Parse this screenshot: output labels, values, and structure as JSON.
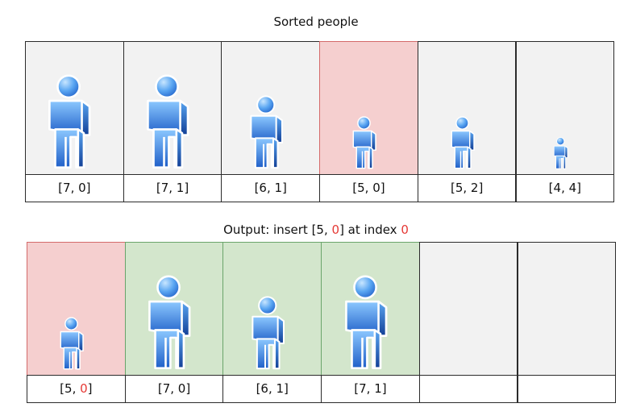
{
  "top": {
    "title": "Sorted people",
    "people": [
      {
        "label": "[7, 0]",
        "height": 7,
        "state": "normal"
      },
      {
        "label": "[7, 1]",
        "height": 7,
        "state": "normal"
      },
      {
        "label": "[6, 1]",
        "height": 6,
        "state": "normal"
      },
      {
        "label": "[5, 0]",
        "height": 5,
        "state": "highlight"
      },
      {
        "label": "[5, 2]",
        "height": 5,
        "state": "normal"
      },
      {
        "label": "[4, 4]",
        "height": 4,
        "state": "normal"
      }
    ]
  },
  "bottom": {
    "title_prefix": "Output: insert [5, ",
    "title_value": "0",
    "title_middle": "] at index ",
    "title_index": "0",
    "slots": [
      {
        "label_prefix": "[5, ",
        "label_value": "0",
        "label_suffix": "]",
        "height": 5,
        "state": "highlight",
        "value_red": true
      },
      {
        "label_prefix": "[7, 0]",
        "label_value": "",
        "label_suffix": "",
        "height": 7,
        "state": "placed",
        "value_red": false
      },
      {
        "label_prefix": "[6, 1]",
        "label_value": "",
        "label_suffix": "",
        "height": 6,
        "state": "placed",
        "value_red": false
      },
      {
        "label_prefix": "[7, 1]",
        "label_value": "",
        "label_suffix": "",
        "height": 7,
        "state": "placed",
        "value_red": false
      },
      {
        "label_prefix": "",
        "label_value": "",
        "label_suffix": "",
        "height": null,
        "state": "empty",
        "value_red": false
      },
      {
        "label_prefix": "",
        "label_value": "",
        "label_suffix": "",
        "height": null,
        "state": "empty",
        "value_red": false
      }
    ]
  },
  "colors": {
    "normal_bg": "#f2f2f2",
    "highlight_bg": "#f5cfcf",
    "placed_bg": "#d3e6cc",
    "empty_bg": "#f2f2f2",
    "accent_red": "#e53935",
    "figure_light": "#8cc8ff",
    "figure_dark": "#1f5fc8"
  }
}
